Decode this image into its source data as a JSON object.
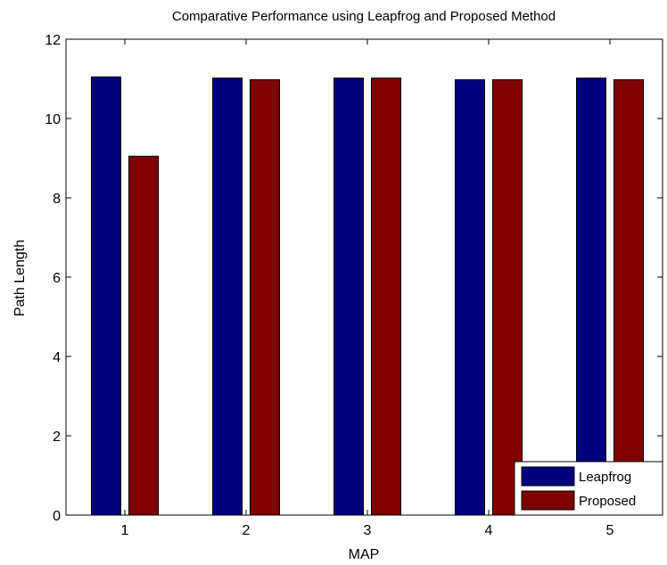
{
  "chart_data": {
    "type": "bar",
    "title": "Comparative Performance using Leapfrog and Proposed Method",
    "xlabel": "MAP",
    "ylabel": "Path Length",
    "categories": [
      "1",
      "2",
      "3",
      "4",
      "5"
    ],
    "series": [
      {
        "name": "Leapfrog",
        "color": "#00007f",
        "values": [
          11.05,
          11.02,
          11.02,
          10.98,
          11.02
        ]
      },
      {
        "name": "Proposed",
        "color": "#7f0000",
        "values": [
          9.05,
          10.98,
          11.02,
          10.98,
          10.98
        ]
      }
    ],
    "ylim": [
      0,
      12
    ],
    "yticks": [
      "0",
      "2",
      "4",
      "6",
      "8",
      "10",
      "12"
    ],
    "grid": false,
    "legend_position": "bottom-right"
  }
}
